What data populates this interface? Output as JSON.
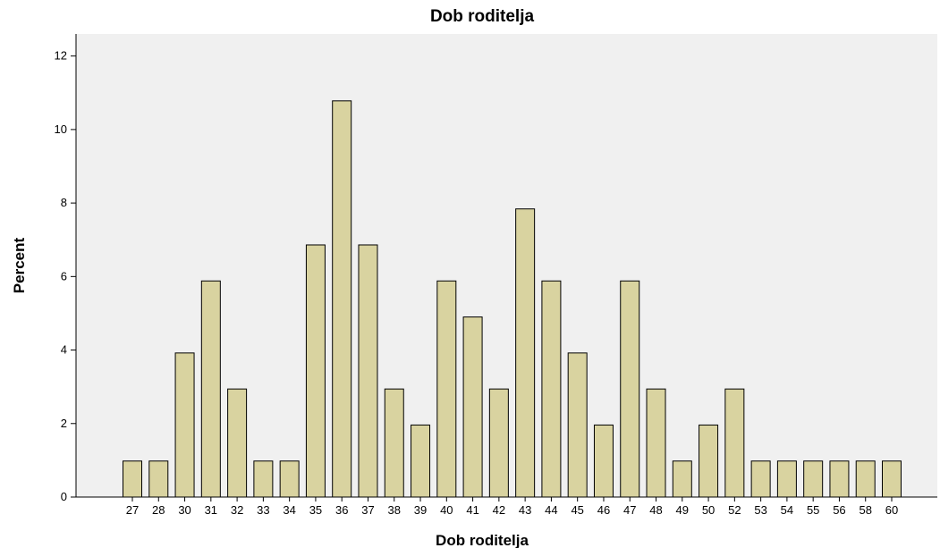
{
  "chart_data": {
    "type": "bar",
    "title": "Dob roditelja",
    "xlabel": "Dob roditelja",
    "ylabel": "Percent",
    "categories": [
      "27",
      "28",
      "30",
      "31",
      "32",
      "33",
      "34",
      "35",
      "36",
      "37",
      "38",
      "39",
      "40",
      "41",
      "42",
      "43",
      "44",
      "45",
      "46",
      "47",
      "48",
      "49",
      "50",
      "52",
      "53",
      "54",
      "55",
      "56",
      "58",
      "60"
    ],
    "values": [
      0.98,
      0.98,
      3.92,
      5.88,
      2.94,
      0.98,
      0.98,
      6.86,
      10.78,
      6.86,
      2.94,
      1.96,
      5.88,
      4.9,
      2.94,
      7.84,
      5.88,
      3.92,
      1.96,
      5.88,
      2.94,
      0.98,
      1.96,
      2.94,
      0.98,
      0.98,
      0.98,
      0.98,
      0.98,
      0.98
    ],
    "yticks": [
      0,
      2,
      4,
      6,
      8,
      10,
      12
    ],
    "ylim": [
      0,
      12.6
    ],
    "grid": false,
    "colors": {
      "bar_fill": "#d9d3a0",
      "bar_stroke": "#000000",
      "plot_background": "#f0f0f0",
      "axis": "#000000"
    }
  }
}
